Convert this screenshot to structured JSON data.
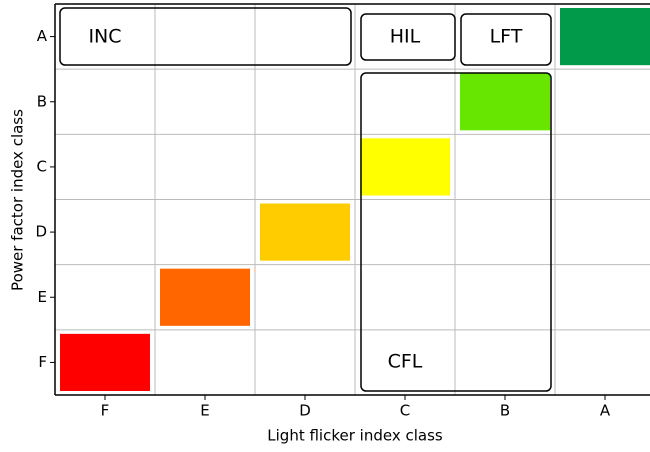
{
  "chart_data": {
    "type": "matrix",
    "xlabel": "Light flicker index class",
    "ylabel": "Power factor index class",
    "x_categories": [
      "F",
      "E",
      "D",
      "C",
      "B",
      "A"
    ],
    "y_categories": [
      "A",
      "B",
      "C",
      "D",
      "E",
      "F"
    ],
    "diagonal_colors": [
      "#ff0000",
      "#ff6600",
      "#ffcc00",
      "#ffff00",
      "#66e600",
      "#009a4a"
    ],
    "grid": true,
    "groups": [
      "INC",
      "HIL",
      "LFT",
      "CFL"
    ]
  }
}
